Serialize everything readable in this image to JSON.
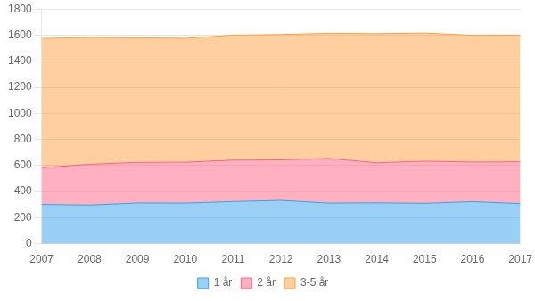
{
  "chart_data": {
    "type": "area",
    "x": [
      2007,
      2008,
      2009,
      2010,
      2011,
      2012,
      2013,
      2014,
      2015,
      2016,
      2017
    ],
    "series": [
      {
        "name": "1 år",
        "values": [
          301,
          296,
          312,
          311,
          323,
          332,
          311,
          313,
          309,
          322,
          307
        ]
      },
      {
        "name": "2 år",
        "values": [
          282,
          313,
          312,
          314,
          318,
          311,
          343,
          308,
          324,
          305,
          321
        ]
      },
      {
        "name": "3-5 år",
        "values": [
          992,
          974,
          956,
          951,
          959,
          962,
          960,
          990,
          983,
          972,
          972
        ]
      }
    ],
    "stacked": true,
    "xlim": [
      2007,
      2017
    ],
    "xticks": [
      2007,
      2008,
      2009,
      2010,
      2011,
      2012,
      2013,
      2014,
      2015,
      2016,
      2017
    ],
    "ylim": [
      0,
      1800
    ],
    "yticks": [
      0,
      200,
      400,
      600,
      800,
      1000,
      1200,
      1400,
      1600,
      1800
    ],
    "grid": "y",
    "legend": "bottom"
  }
}
